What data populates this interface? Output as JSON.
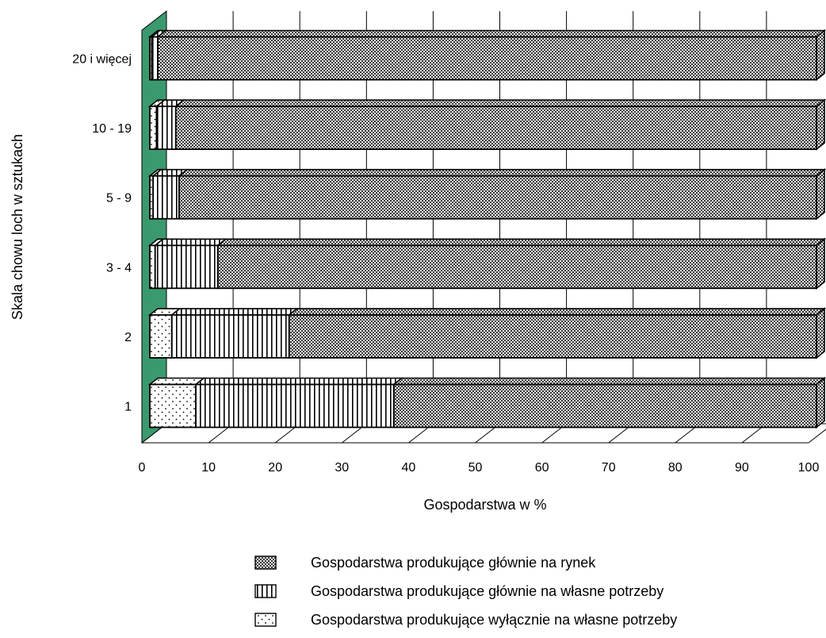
{
  "chart_data": {
    "type": "bar",
    "orientation": "horizontal",
    "stacked": true,
    "three_d": true,
    "title": "",
    "xlabel": "Gospodarstwa w %",
    "ylabel": "Skala chowu loch w sztukach",
    "xlim": [
      0,
      100
    ],
    "xticks": [
      0,
      10,
      20,
      30,
      40,
      50,
      60,
      70,
      80,
      90,
      100
    ],
    "categories": [
      "20 i więcej",
      "10 - 19",
      "5 - 9",
      "3 - 4",
      "2",
      "1"
    ],
    "series": [
      {
        "name": "Gospodarstwa produkujące wyłącznie na własne potrzeby",
        "pattern": "dots",
        "values": [
          0.3,
          1.0,
          0.5,
          0.8,
          3.3,
          6.9
        ]
      },
      {
        "name": "Gospodarstwa produkujące głównie na własne potrzeby",
        "pattern": "vertical-lines",
        "values": [
          0.9,
          2.9,
          3.9,
          9.4,
          17.6,
          29.7
        ]
      },
      {
        "name": "Gospodarstwa produkujące głównie na rynek",
        "pattern": "checker",
        "values": [
          98.8,
          96.1,
          95.6,
          89.8,
          79.1,
          63.4
        ]
      }
    ],
    "legend": {
      "placement": "bottom-center",
      "order": [
        "Gospodarstwa produkujące głównie na rynek",
        "Gospodarstwa produkujące głównie na własne potrzeby",
        "Gospodarstwa produkujące wyłącznie na własne potrzeby"
      ]
    },
    "grid": "vertical",
    "wall_color": "#3a9a6e"
  }
}
